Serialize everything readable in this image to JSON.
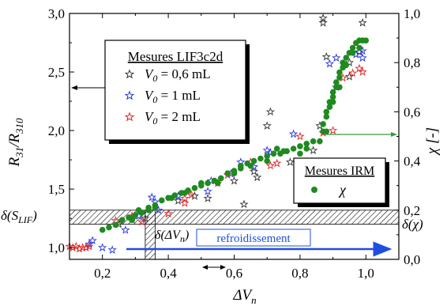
{
  "chart_data": {
    "type": "scatter",
    "x_axis": {
      "label": "ΔV",
      "label_sub": "n",
      "range": [
        0.1,
        1.1
      ],
      "ticks": [
        0.2,
        0.4,
        0.6,
        0.8,
        1.0
      ],
      "tick_labels": [
        "0,2",
        "0,4",
        "0,6",
        "0,8",
        "1,0"
      ]
    },
    "y_left": {
      "label_parts": [
        {
          "t": "R",
          "sub": "31"
        },
        {
          "t": "/R",
          "sub": "310"
        }
      ],
      "range": [
        0.9,
        3.0
      ],
      "ticks": [
        1.0,
        1.5,
        2.0,
        2.5,
        3.0
      ],
      "tick_labels": [
        "1,0",
        "1,5",
        "2,0",
        "2,5",
        "3,0"
      ]
    },
    "y_right": {
      "label": "χ [-]",
      "range": [
        0.0,
        1.0
      ],
      "ticks": [
        0.0,
        0.2,
        0.4,
        0.6,
        0.8,
        1.0
      ],
      "tick_labels": [
        "0,0",
        "0,2",
        "0,4",
        "0,6",
        "0,8",
        "1,0"
      ]
    },
    "legend_lif": {
      "title": "Mesures LIF3c2d",
      "entries": [
        {
          "var": "V",
          "sub": "0",
          "text": " = 0,6 mL",
          "color": "#333333"
        },
        {
          "var": "V",
          "sub": "0",
          "text": " = 1 mL",
          "color": "#2233dd"
        },
        {
          "var": "V",
          "sub": "0",
          "text": " = 2 mL",
          "color": "#dd2222"
        }
      ]
    },
    "legend_irm": {
      "title": "Mesures IRM",
      "entry": "χ",
      "color": "#1f8a1f"
    },
    "annotations": {
      "delta_s": {
        "pre": "δ(S",
        "sub": "LIF",
        "post": ")"
      },
      "delta_v": {
        "pre": "δ(ΔV",
        "sub": "n",
        "post": ")"
      },
      "delta_chi": "δ(χ)",
      "cooling": "refroidissement"
    },
    "bands": {
      "horizontal_band_R": [
        1.2,
        1.32
      ],
      "vertical_band_dVn": [
        0.33,
        0.36
      ]
    },
    "series": [
      {
        "name": "V0 = 0,6 mL",
        "axis": "left",
        "marker": "star",
        "color": "#333333",
        "points": [
          [
            0.87,
            2.96
          ],
          [
            0.87,
            2.92
          ],
          [
            0.99,
            2.92
          ],
          [
            0.71,
            2.16
          ],
          [
            0.7,
            2.04
          ],
          [
            0.66,
            1.65
          ],
          [
            0.6,
            1.57
          ],
          [
            0.52,
            1.42
          ],
          [
            0.63,
            1.37
          ],
          [
            0.77,
            1.73
          ],
          [
            0.84,
            1.83
          ],
          [
            0.95,
            2.58
          ],
          [
            0.98,
            2.67
          ],
          [
            0.95,
            2.46
          ],
          [
            0.43,
            1.4
          ],
          [
            0.33,
            1.25
          ],
          [
            0.29,
            1.24
          ],
          [
            0.25,
            1.2
          ],
          [
            0.48,
            1.44
          ],
          [
            0.88,
            2.63
          ],
          [
            0.67,
            1.6
          ],
          [
            0.86,
            2.04
          ]
        ]
      },
      {
        "name": "V0 = 1 mL",
        "axis": "left",
        "marker": "star",
        "color": "#2233dd",
        "points": [
          [
            0.17,
            1.06
          ],
          [
            0.23,
            0.98
          ],
          [
            0.35,
            1.43
          ],
          [
            0.36,
            1.39
          ],
          [
            0.43,
            1.44
          ],
          [
            0.52,
            1.48
          ],
          [
            0.59,
            1.63
          ],
          [
            0.66,
            1.69
          ],
          [
            0.7,
            1.83
          ],
          [
            0.78,
            1.97
          ],
          [
            0.89,
            2.57
          ],
          [
            0.91,
            2.62
          ],
          [
            0.99,
            2.68
          ],
          [
            0.99,
            2.62
          ],
          [
            0.31,
            1.27
          ],
          [
            0.71,
            1.81
          ],
          [
            0.53,
            1.57
          ],
          [
            0.27,
            1.15
          ],
          [
            0.16,
            1.03
          ],
          [
            0.37,
            1.32
          ],
          [
            0.91,
            2.37
          ],
          [
            0.97,
            2.65
          ],
          [
            0.62,
            1.73
          ],
          [
            0.2,
            1.0
          ]
        ]
      },
      {
        "name": "V0 = 2 mL",
        "axis": "left",
        "marker": "star",
        "color": "#dd2222",
        "points": [
          [
            0.1,
            1.01
          ],
          [
            0.11,
            1.0
          ],
          [
            0.12,
            1.01
          ],
          [
            0.13,
            0.99
          ],
          [
            0.14,
            1.0
          ],
          [
            0.15,
            1.0
          ],
          [
            0.16,
            1.01
          ],
          [
            0.24,
            1.23
          ],
          [
            0.29,
            1.27
          ],
          [
            0.4,
            1.29
          ],
          [
            0.45,
            1.38
          ],
          [
            0.47,
            1.45
          ],
          [
            0.58,
            1.62
          ],
          [
            0.65,
            1.73
          ],
          [
            0.71,
            1.7
          ],
          [
            0.73,
            1.72
          ],
          [
            0.87,
            1.98
          ],
          [
            0.9,
            2.0
          ],
          [
            0.93,
            2.45
          ],
          [
            0.96,
            2.49
          ],
          [
            0.98,
            2.53
          ],
          [
            0.99,
            2.5
          ],
          [
            0.32,
            1.22
          ],
          [
            0.45,
            1.42
          ],
          [
            0.55,
            1.55
          ],
          [
            0.8,
            1.95
          ]
        ]
      },
      {
        "name": "χ",
        "axis": "right",
        "marker": "circle",
        "color": "#1f8a1f",
        "points": [
          [
            0.2,
            0.12
          ],
          [
            0.22,
            0.13
          ],
          [
            0.24,
            0.14
          ],
          [
            0.26,
            0.16
          ],
          [
            0.28,
            0.17
          ],
          [
            0.3,
            0.18
          ],
          [
            0.32,
            0.19
          ],
          [
            0.34,
            0.21
          ],
          [
            0.36,
            0.22
          ],
          [
            0.38,
            0.24
          ],
          [
            0.4,
            0.25
          ],
          [
            0.42,
            0.26
          ],
          [
            0.44,
            0.27
          ],
          [
            0.46,
            0.28
          ],
          [
            0.48,
            0.29
          ],
          [
            0.5,
            0.3
          ],
          [
            0.52,
            0.31
          ],
          [
            0.54,
            0.32
          ],
          [
            0.56,
            0.33
          ],
          [
            0.58,
            0.35
          ],
          [
            0.6,
            0.36
          ],
          [
            0.62,
            0.37
          ],
          [
            0.64,
            0.39
          ],
          [
            0.66,
            0.4
          ],
          [
            0.68,
            0.41
          ],
          [
            0.7,
            0.42
          ],
          [
            0.72,
            0.43
          ],
          [
            0.74,
            0.43
          ],
          [
            0.76,
            0.44
          ],
          [
            0.78,
            0.45
          ],
          [
            0.8,
            0.46
          ],
          [
            0.82,
            0.47
          ],
          [
            0.84,
            0.48
          ],
          [
            0.86,
            0.48
          ],
          [
            0.87,
            0.52
          ],
          [
            0.87,
            0.55
          ],
          [
            0.88,
            0.58
          ],
          [
            0.88,
            0.6
          ],
          [
            0.89,
            0.62
          ],
          [
            0.89,
            0.64
          ],
          [
            0.9,
            0.66
          ],
          [
            0.9,
            0.68
          ],
          [
            0.91,
            0.7
          ],
          [
            0.91,
            0.72
          ],
          [
            0.92,
            0.74
          ],
          [
            0.92,
            0.76
          ],
          [
            0.93,
            0.78
          ],
          [
            0.93,
            0.8
          ],
          [
            0.94,
            0.82
          ],
          [
            0.95,
            0.84
          ],
          [
            0.96,
            0.86
          ],
          [
            0.97,
            0.88
          ],
          [
            0.98,
            0.89
          ],
          [
            0.99,
            0.89
          ],
          [
            1.0,
            0.89
          ],
          [
            0.34,
            0.2
          ],
          [
            0.36,
            0.21
          ],
          [
            0.5,
            0.31
          ],
          [
            0.6,
            0.35
          ],
          [
            0.7,
            0.4
          ],
          [
            0.75,
            0.44
          ],
          [
            0.82,
            0.45
          ],
          [
            0.45,
            0.27
          ],
          [
            0.55,
            0.31
          ],
          [
            0.65,
            0.38
          ],
          [
            0.8,
            0.43
          ],
          [
            0.73,
            0.45
          ],
          [
            0.88,
            0.52
          ],
          [
            0.9,
            0.64
          ],
          [
            0.92,
            0.7
          ],
          [
            0.94,
            0.79
          ],
          [
            0.29,
            0.16
          ],
          [
            0.31,
            0.2
          ],
          [
            0.41,
            0.25
          ],
          [
            0.62,
            0.38
          ],
          [
            0.96,
            0.84
          ],
          [
            0.98,
            0.86
          ]
        ]
      }
    ]
  }
}
